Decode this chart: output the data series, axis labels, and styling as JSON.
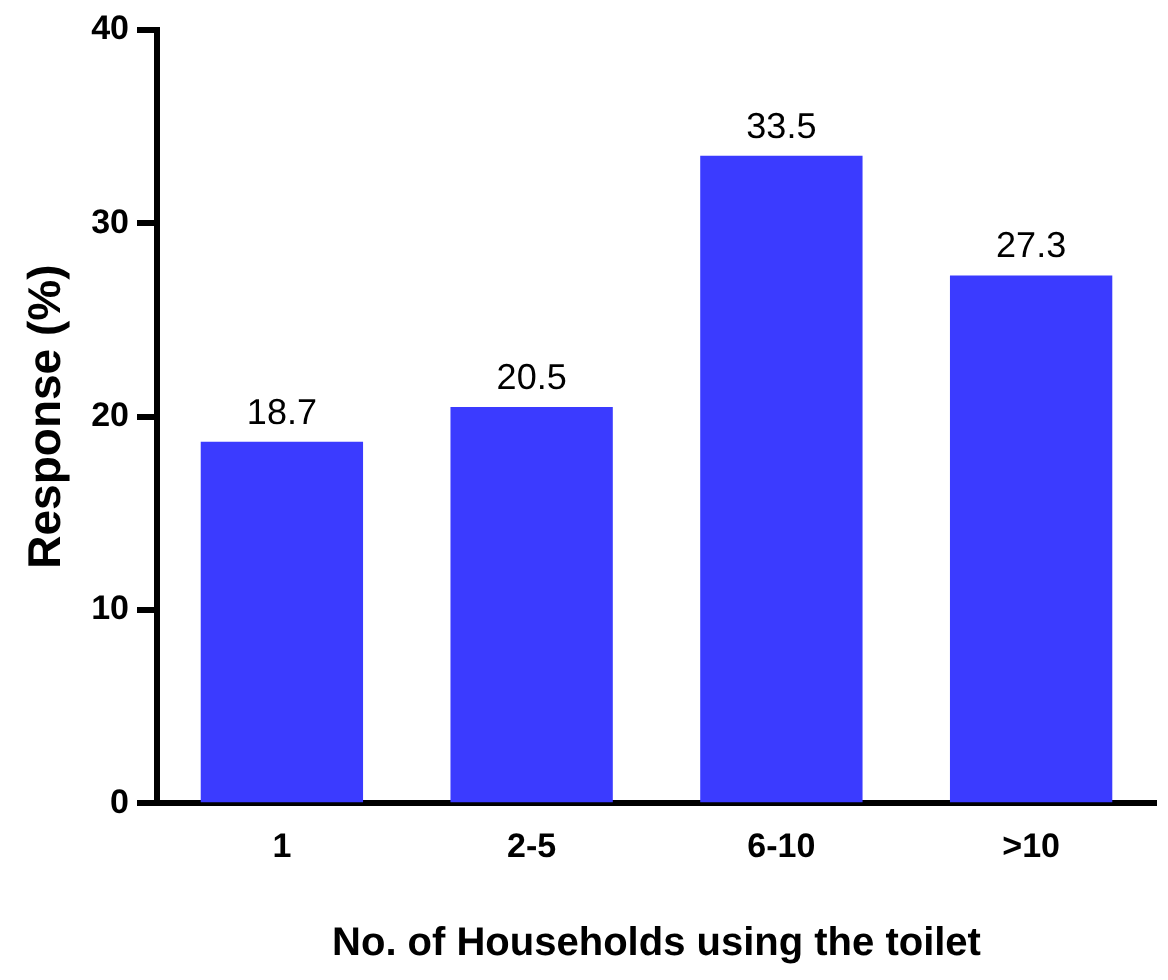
{
  "chart_data": {
    "type": "bar",
    "xlabel": "No. of Households using the toilet",
    "ylabel": "Response (%)",
    "categories": [
      "1",
      "2-5",
      "6-10",
      ">10"
    ],
    "values": [
      18.7,
      20.5,
      33.5,
      27.3
    ],
    "color": "#3b3bff",
    "ylim": [
      0,
      40
    ],
    "yticks": [
      0,
      10,
      20,
      30,
      40
    ],
    "grid": false,
    "legend": false,
    "data_labels": true
  }
}
